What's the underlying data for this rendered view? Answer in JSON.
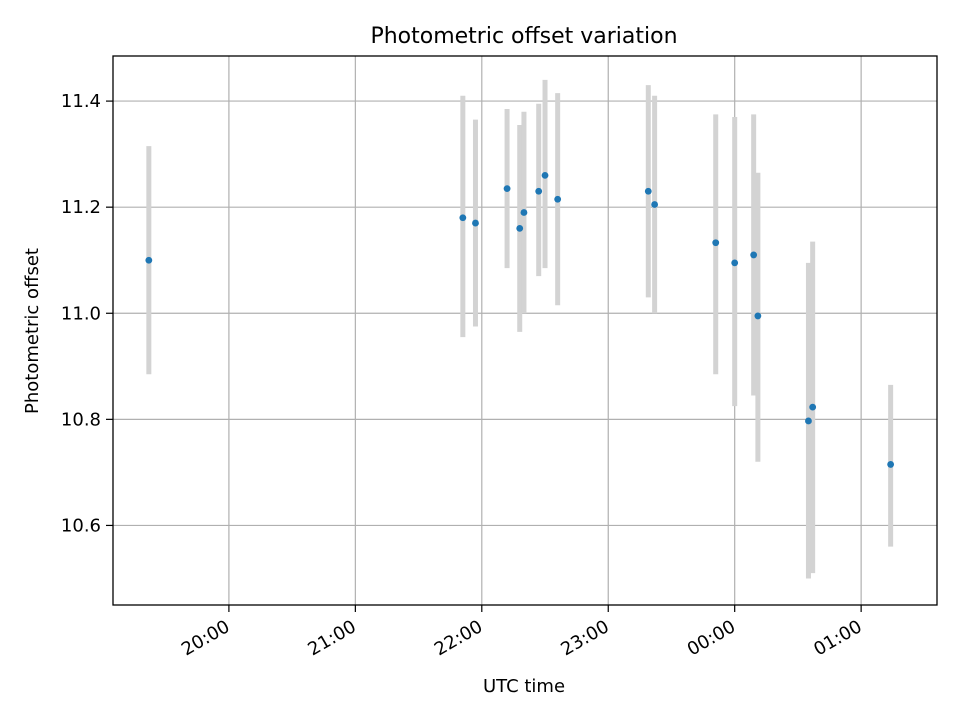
{
  "chart_data": {
    "type": "scatter",
    "title": "Photometric offset variation",
    "xlabel": "UTC time",
    "ylabel": "Photometric offset",
    "x_axis_kind": "time",
    "xlim": [
      "19:05",
      "01:36"
    ],
    "ylim": [
      10.45,
      11.485
    ],
    "x_ticks": [
      {
        "time": "20:00",
        "label": "20:00"
      },
      {
        "time": "21:00",
        "label": "21:00"
      },
      {
        "time": "22:00",
        "label": "22:00"
      },
      {
        "time": "23:00",
        "label": "23:00"
      },
      {
        "time": "00:00",
        "label": "00:00"
      },
      {
        "time": "01:00",
        "label": "01:00"
      }
    ],
    "y_ticks": [
      {
        "value": 10.6,
        "label": "10.6"
      },
      {
        "value": 10.8,
        "label": "10.8"
      },
      {
        "value": 11.0,
        "label": "11.0"
      },
      {
        "value": 11.2,
        "label": "11.2"
      },
      {
        "value": 11.4,
        "label": "11.4"
      }
    ],
    "grid": true,
    "point_color": "#1f77b4",
    "errorbar_color": "#d3d3d3",
    "points": [
      {
        "x": "19:22",
        "y": 11.1,
        "ylow": 10.885,
        "yhigh": 11.315
      },
      {
        "x": "21:51",
        "y": 11.18,
        "ylow": 10.955,
        "yhigh": 11.41
      },
      {
        "x": "21:57",
        "y": 11.17,
        "ylow": 10.975,
        "yhigh": 11.365
      },
      {
        "x": "22:12",
        "y": 11.235,
        "ylow": 11.085,
        "yhigh": 11.385
      },
      {
        "x": "22:18",
        "y": 11.16,
        "ylow": 10.965,
        "yhigh": 11.355
      },
      {
        "x": "22:20",
        "y": 11.19,
        "ylow": 11.0,
        "yhigh": 11.38
      },
      {
        "x": "22:27",
        "y": 11.23,
        "ylow": 11.07,
        "yhigh": 11.395
      },
      {
        "x": "22:30",
        "y": 11.26,
        "ylow": 11.085,
        "yhigh": 11.44
      },
      {
        "x": "22:36",
        "y": 11.215,
        "ylow": 11.015,
        "yhigh": 11.415
      },
      {
        "x": "23:19",
        "y": 11.23,
        "ylow": 11.03,
        "yhigh": 11.43
      },
      {
        "x": "23:22",
        "y": 11.205,
        "ylow": 11.0,
        "yhigh": 11.41
      },
      {
        "x": "23:51",
        "y": 11.133,
        "ylow": 10.885,
        "yhigh": 11.375
      },
      {
        "x": "00:00",
        "y": 11.095,
        "ylow": 10.825,
        "yhigh": 11.37
      },
      {
        "x": "00:09",
        "y": 11.11,
        "ylow": 10.845,
        "yhigh": 11.375
      },
      {
        "x": "00:11",
        "y": 10.995,
        "ylow": 10.72,
        "yhigh": 11.265
      },
      {
        "x": "00:35",
        "y": 10.797,
        "ylow": 10.5,
        "yhigh": 11.095
      },
      {
        "x": "00:37",
        "y": 10.823,
        "ylow": 10.51,
        "yhigh": 11.135
      },
      {
        "x": "01:14",
        "y": 10.715,
        "ylow": 10.56,
        "yhigh": 10.865
      }
    ]
  }
}
